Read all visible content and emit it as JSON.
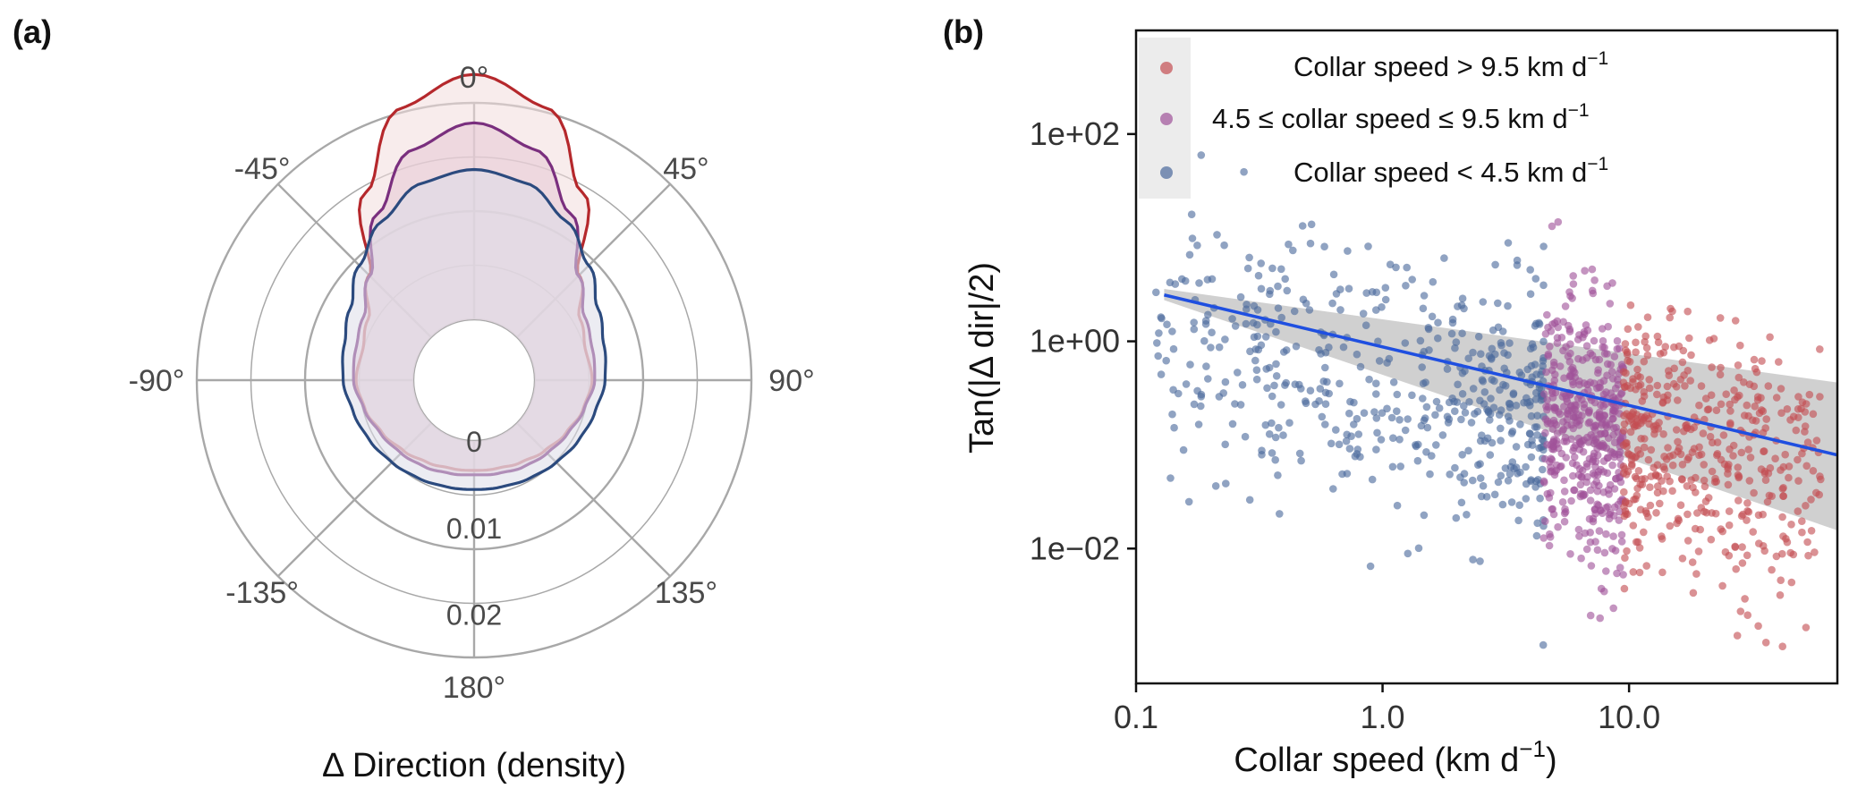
{
  "panel_a": {
    "label": "(a)",
    "xlabel": "Δ Direction (density)",
    "angle_labels": [
      "0°",
      "45°",
      "90°",
      "135°",
      "180°",
      "-135°",
      "-90°",
      "-45°"
    ],
    "radial_labels": [
      "0",
      "0.01",
      "0.02"
    ]
  },
  "panel_b": {
    "label": "(b)",
    "xlabel_main": "Collar speed (km d",
    "xlabel_sup": "−1",
    "xlabel_close": ")",
    "ylabel": "Tan(|Δ dir|/2)",
    "xticks": [
      "0.1",
      "1.0",
      "10.0"
    ],
    "yticks": [
      "1e−02",
      "1e+00",
      "1e+02"
    ],
    "legend": [
      {
        "main": "Collar speed > 9.5 km d",
        "sup": "−1",
        "color": "#c44e52"
      },
      {
        "main": "4.5 ≤  collar speed  ≤ 9.5 km d",
        "sup": "−1",
        "color": "#a0529a"
      },
      {
        "main": "Collar speed < 4.5 km d",
        "sup": "−1",
        "color": "#4c6a9c"
      }
    ]
  },
  "chart_data": [
    {
      "type": "line",
      "subtype": "polar-density",
      "theta_unit": "degrees",
      "rlim": [
        0,
        0.025
      ],
      "radial_ticks": [
        0,
        0.01,
        0.02
      ],
      "theta_ticks": [
        0,
        45,
        90,
        135,
        180,
        -135,
        -90,
        -45
      ],
      "series": [
        {
          "color": "#b5282c",
          "fill": "#f3dcdc",
          "theta": [
            0,
            15,
            30,
            45,
            60,
            75,
            90,
            105,
            120,
            135,
            150,
            165,
            180
          ],
          "r": [
            0.0283,
            0.0255,
            0.018,
            0.0101,
            0.0071,
            0.0063,
            0.0066,
            0.006,
            0.0052,
            0.0045,
            0.0039,
            0.0035,
            0.0034
          ]
        },
        {
          "color": "#7a2f7e",
          "fill": "#e6c9d6",
          "theta": [
            0,
            15,
            30,
            45,
            60,
            75,
            90,
            105,
            120,
            135,
            150,
            165,
            180
          ],
          "r": [
            0.0227,
            0.0205,
            0.0152,
            0.01,
            0.0077,
            0.0071,
            0.0069,
            0.0061,
            0.0054,
            0.0049,
            0.0045,
            0.0041,
            0.0039
          ]
        },
        {
          "color": "#2b4a7e",
          "fill": "#dcdde8",
          "theta": [
            0,
            15,
            30,
            45,
            60,
            75,
            90,
            105,
            120,
            135,
            150,
            165,
            180
          ],
          "r": [
            0.0173,
            0.0165,
            0.0142,
            0.0117,
            0.0095,
            0.0085,
            0.0081,
            0.0074,
            0.0069,
            0.0064,
            0.006,
            0.0057,
            0.0056
          ]
        }
      ]
    },
    {
      "type": "scatter",
      "x_scale": "log",
      "y_scale": "log",
      "xlim": [
        0.1,
        70
      ],
      "ylim": [
        0.0005,
        1000
      ],
      "xticks": [
        0.1,
        1,
        10
      ],
      "yticks": [
        0.01,
        1,
        100
      ],
      "grid": false,
      "legend_position": "top-left",
      "series": [
        {
          "color": "#4c6a9c",
          "x_range": [
            0.12,
            4.5
          ],
          "approx_points": 500
        },
        {
          "color": "#a0529a",
          "x_range": [
            4.5,
            9.5
          ],
          "approx_points": 450
        },
        {
          "color": "#c44e52",
          "x_range": [
            9.5,
            60
          ],
          "approx_points": 450
        }
      ],
      "fit_line": {
        "color": "#1f4fe0",
        "x": [
          0.13,
          70
        ],
        "y": [
          2.8,
          0.08
        ]
      },
      "confidence_band": {
        "color": "#c8c8c8",
        "x": [
          0.13,
          70
        ],
        "upper": [
          3.2,
          0.4
        ],
        "lower": [
          2.5,
          0.015
        ]
      }
    }
  ]
}
